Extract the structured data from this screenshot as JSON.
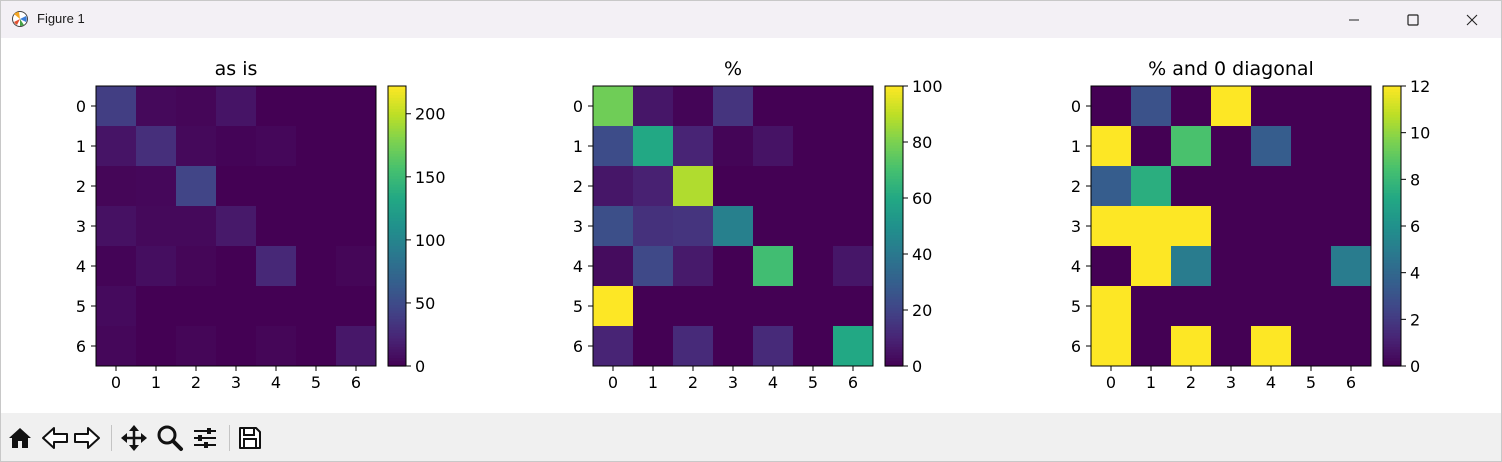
{
  "window": {
    "title": "Figure 1"
  },
  "toolbar": {
    "buttons": [
      {
        "icon": "home-icon"
      },
      {
        "icon": "back-icon"
      },
      {
        "icon": "forward-icon"
      },
      {
        "icon": "pan-icon"
      },
      {
        "icon": "zoom-icon"
      },
      {
        "icon": "configure-subplots-icon"
      },
      {
        "icon": "save-icon"
      }
    ]
  },
  "colors": {
    "colormap": "viridis",
    "titlebar": "#f3f0f5",
    "toolbar": "#f0f0f0"
  },
  "chart_data": [
    {
      "type": "heatmap",
      "title": "as is",
      "x_ticks": [
        "0",
        "1",
        "2",
        "3",
        "4",
        "5",
        "6"
      ],
      "y_ticks": [
        "0",
        "1",
        "2",
        "3",
        "4",
        "5",
        "6"
      ],
      "colorbar": {
        "min": 0,
        "max": 222,
        "ticks": [
          0,
          50,
          100,
          150,
          200
        ]
      },
      "values": [
        [
          40,
          5,
          3,
          12,
          0,
          0,
          0
        ],
        [
          12,
          30,
          5,
          2,
          4,
          0,
          0
        ],
        [
          3,
          4,
          45,
          0,
          0,
          0,
          0
        ],
        [
          10,
          5,
          5,
          15,
          0,
          0,
          0
        ],
        [
          2,
          8,
          3,
          0,
          25,
          0,
          3
        ],
        [
          6,
          0,
          0,
          0,
          0,
          0,
          0
        ],
        [
          4,
          0,
          3,
          0,
          3,
          0,
          14
        ]
      ]
    },
    {
      "type": "heatmap",
      "title": "%",
      "x_ticks": [
        "0",
        "1",
        "2",
        "3",
        "4",
        "5",
        "6"
      ],
      "y_ticks": [
        "0",
        "1",
        "2",
        "3",
        "4",
        "5",
        "6"
      ],
      "colorbar": {
        "min": 0,
        "max": 100,
        "ticks": [
          0,
          20,
          40,
          60,
          80,
          100
        ]
      },
      "values": [
        [
          78,
          6,
          1,
          15,
          0,
          0,
          0
        ],
        [
          23,
          60,
          10,
          1,
          5,
          0,
          0
        ],
        [
          6,
          9,
          88,
          0,
          0,
          0,
          0
        ],
        [
          24,
          14,
          15,
          43,
          0,
          0,
          0
        ],
        [
          3,
          22,
          7,
          0,
          69,
          0,
          6
        ],
        [
          100,
          0,
          0,
          0,
          0,
          0,
          0
        ],
        [
          10,
          0,
          12,
          0,
          12,
          0,
          60
        ]
      ]
    },
    {
      "type": "heatmap",
      "title": "% and 0 diagonal",
      "x_ticks": [
        "0",
        "1",
        "2",
        "3",
        "4",
        "5",
        "6"
      ],
      "y_ticks": [
        "0",
        "1",
        "2",
        "3",
        "4",
        "5",
        "6"
      ],
      "colorbar": {
        "min": 0,
        "max": 12,
        "ticks": [
          0,
          2,
          4,
          6,
          8,
          10,
          12
        ]
      },
      "values": [
        [
          0,
          3,
          0,
          12,
          0,
          0,
          0
        ],
        [
          12,
          0,
          8.5,
          0,
          3.5,
          0,
          0
        ],
        [
          3.5,
          7.5,
          0,
          0,
          0,
          0,
          0
        ],
        [
          12,
          12,
          12,
          0,
          0,
          0,
          0
        ],
        [
          0,
          12,
          5,
          0,
          0,
          0,
          5
        ],
        [
          12,
          0,
          0,
          0,
          0,
          0,
          0
        ],
        [
          12,
          0,
          12,
          0,
          12,
          0,
          0
        ]
      ]
    }
  ]
}
